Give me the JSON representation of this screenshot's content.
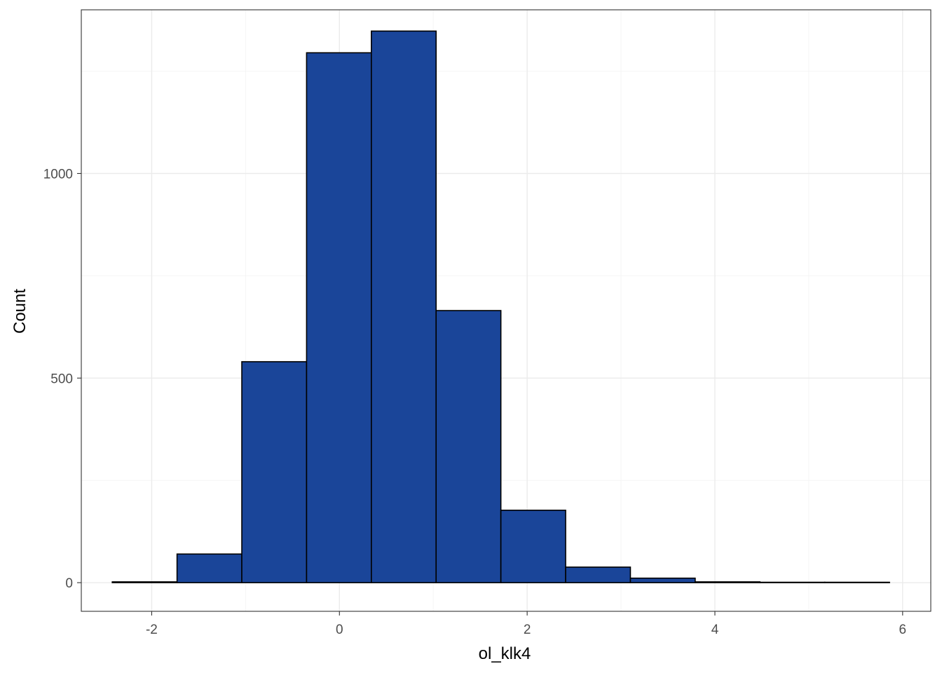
{
  "chart_data": {
    "type": "histogram",
    "xlabel": "ol_klk4",
    "ylabel": "Count",
    "xlim": [
      -2.75,
      6.3
    ],
    "ylim": [
      -70,
      1400
    ],
    "x_ticks": [
      -2,
      0,
      2,
      4,
      6
    ],
    "y_ticks": [
      0,
      500,
      1000
    ],
    "x_tick_labels": [
      "-2",
      "0",
      "2",
      "4",
      "6"
    ],
    "y_tick_labels": [
      "0",
      "500",
      "1000"
    ],
    "grid": true,
    "bins": [
      {
        "x0": -2.42,
        "x1": -1.73,
        "count": 2
      },
      {
        "x0": -1.73,
        "x1": -1.04,
        "count": 70
      },
      {
        "x0": -1.04,
        "x1": -0.35,
        "count": 540
      },
      {
        "x0": -0.35,
        "x1": 0.34,
        "count": 1295
      },
      {
        "x0": 0.34,
        "x1": 1.03,
        "count": 1348
      },
      {
        "x0": 1.03,
        "x1": 1.72,
        "count": 665
      },
      {
        "x0": 1.72,
        "x1": 2.41,
        "count": 177
      },
      {
        "x0": 2.41,
        "x1": 3.1,
        "count": 38
      },
      {
        "x0": 3.1,
        "x1": 3.79,
        "count": 11
      },
      {
        "x0": 3.79,
        "x1": 4.48,
        "count": 2
      },
      {
        "x0": 4.48,
        "x1": 5.17,
        "count": 1
      },
      {
        "x0": 5.17,
        "x1": 5.86,
        "count": 1
      }
    ],
    "colors": {
      "bar_fill": "#1A4599",
      "bar_stroke": "#000000",
      "grid_major": "#EBEBEB",
      "grid_minor": "#F5F5F5",
      "panel_border": "#333333"
    }
  }
}
